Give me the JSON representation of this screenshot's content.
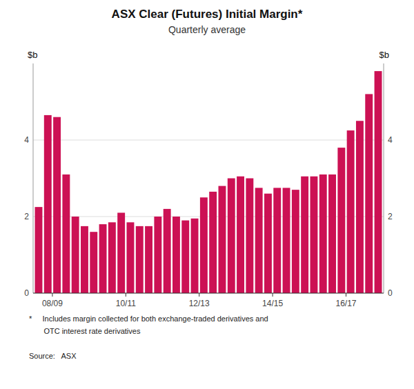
{
  "chart_data": {
    "type": "bar",
    "title": "ASX Clear (Futures) Initial Margin*",
    "subtitle": "Quarterly average",
    "ylabel": "$b",
    "y2label": "$b",
    "color": "#CC1154",
    "grid": true,
    "categories": [
      null,
      null,
      null,
      null,
      null,
      null,
      null,
      null,
      null,
      null,
      null,
      null,
      null,
      null,
      null,
      null,
      null,
      null,
      null,
      null,
      null,
      null,
      null,
      null,
      null,
      null,
      null,
      null,
      null,
      null,
      null,
      null,
      null,
      null,
      null,
      null,
      null,
      null
    ],
    "values": [
      2.25,
      4.65,
      4.6,
      3.1,
      2.0,
      1.75,
      1.6,
      1.8,
      1.85,
      2.1,
      1.85,
      1.75,
      1.75,
      2.0,
      2.2,
      2.0,
      1.9,
      1.95,
      2.5,
      2.65,
      2.8,
      3.0,
      3.05,
      3.0,
      2.75,
      2.6,
      2.75,
      2.75,
      2.7,
      3.05,
      3.05,
      3.1,
      3.1,
      3.8,
      4.25,
      4.5,
      5.2,
      5.8
    ],
    "xlim": [
      -0.6,
      37.6
    ],
    "xticks": [
      {
        "value": 1.5,
        "label": "08/09"
      },
      {
        "value": 9.5,
        "label": "10/11"
      },
      {
        "value": 17.5,
        "label": "12/13"
      },
      {
        "value": 25.5,
        "label": "14/15"
      },
      {
        "value": 33.5,
        "label": "16/17"
      }
    ],
    "ylim": [
      0,
      6
    ],
    "yticks": [
      0,
      2,
      4
    ],
    "y2lim": [
      0,
      6
    ],
    "y2ticks": [
      0,
      2,
      4
    ],
    "notes": [
      "*     Includes margin collected for both exchange-traded derivatives and",
      "       OTC interest rate derivatives"
    ],
    "source": "Source:   ASX"
  }
}
